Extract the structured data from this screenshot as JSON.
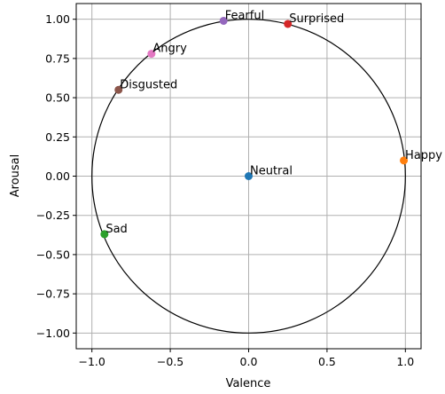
{
  "chart_data": {
    "type": "scatter",
    "title": "",
    "xlabel": "Valence",
    "ylabel": "Arousal",
    "xlim": [
      -1.1,
      1.1
    ],
    "ylim": [
      -1.1,
      1.1
    ],
    "xticks": [
      -1.0,
      -0.5,
      0.0,
      0.5,
      1.0
    ],
    "xtick_labels": [
      "−1.0",
      "−0.5",
      "0.0",
      "0.5",
      "1.0"
    ],
    "yticks": [
      1.0,
      0.75,
      0.5,
      0.25,
      0.0,
      -0.25,
      -0.5,
      -0.75,
      -1.0
    ],
    "ytick_labels": [
      "1.00",
      "0.75",
      "0.50",
      "0.25",
      "0.00",
      "−0.25",
      "−0.50",
      "−0.75",
      "−1.00"
    ],
    "grid": true,
    "unit_circle": {
      "center": [
        0,
        0
      ],
      "radius": 1.0,
      "color": "#000000"
    },
    "points": [
      {
        "label": "Neutral",
        "x": 0.0,
        "y": 0.0,
        "color": "#1f77b4"
      },
      {
        "label": "Happy",
        "x": 0.99,
        "y": 0.1,
        "color": "#ff7f0e"
      },
      {
        "label": "Sad",
        "x": -0.92,
        "y": -0.37,
        "color": "#2ca02c"
      },
      {
        "label": "Surprised",
        "x": 0.25,
        "y": 0.97,
        "color": "#d62728"
      },
      {
        "label": "Fearful",
        "x": -0.16,
        "y": 0.99,
        "color": "#9467bd"
      },
      {
        "label": "Disgusted",
        "x": -0.83,
        "y": 0.55,
        "color": "#8c564b"
      },
      {
        "label": "Angry",
        "x": -0.62,
        "y": 0.78,
        "color": "#e377c2"
      }
    ]
  }
}
